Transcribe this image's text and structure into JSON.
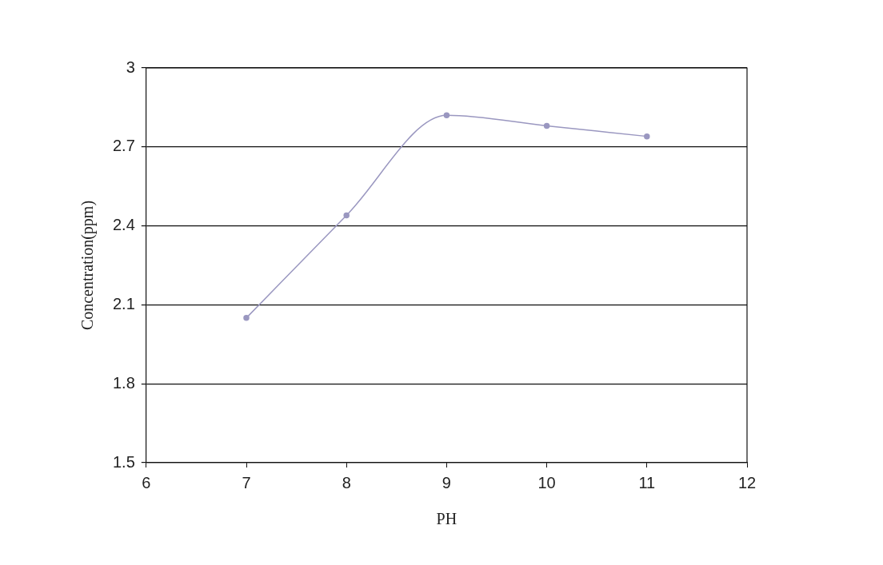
{
  "chart_data": {
    "type": "line",
    "xlabel": "PH",
    "ylabel": "Concentration(ppm)",
    "x": [
      7,
      8,
      9,
      10,
      11
    ],
    "series": [
      {
        "color": "#9a97c0",
        "values": [
          2.05,
          2.44,
          2.82,
          2.78,
          2.74
        ]
      }
    ],
    "xlim": [
      6,
      12
    ],
    "xticks": [
      6,
      7,
      8,
      9,
      10,
      11,
      12
    ],
    "ylim": [
      1.5,
      3
    ],
    "yticks": [
      1.5,
      1.8,
      2.1,
      2.4,
      2.7,
      3
    ],
    "grid": "y",
    "legend": false,
    "marker": "circle",
    "line_style": "solid"
  }
}
